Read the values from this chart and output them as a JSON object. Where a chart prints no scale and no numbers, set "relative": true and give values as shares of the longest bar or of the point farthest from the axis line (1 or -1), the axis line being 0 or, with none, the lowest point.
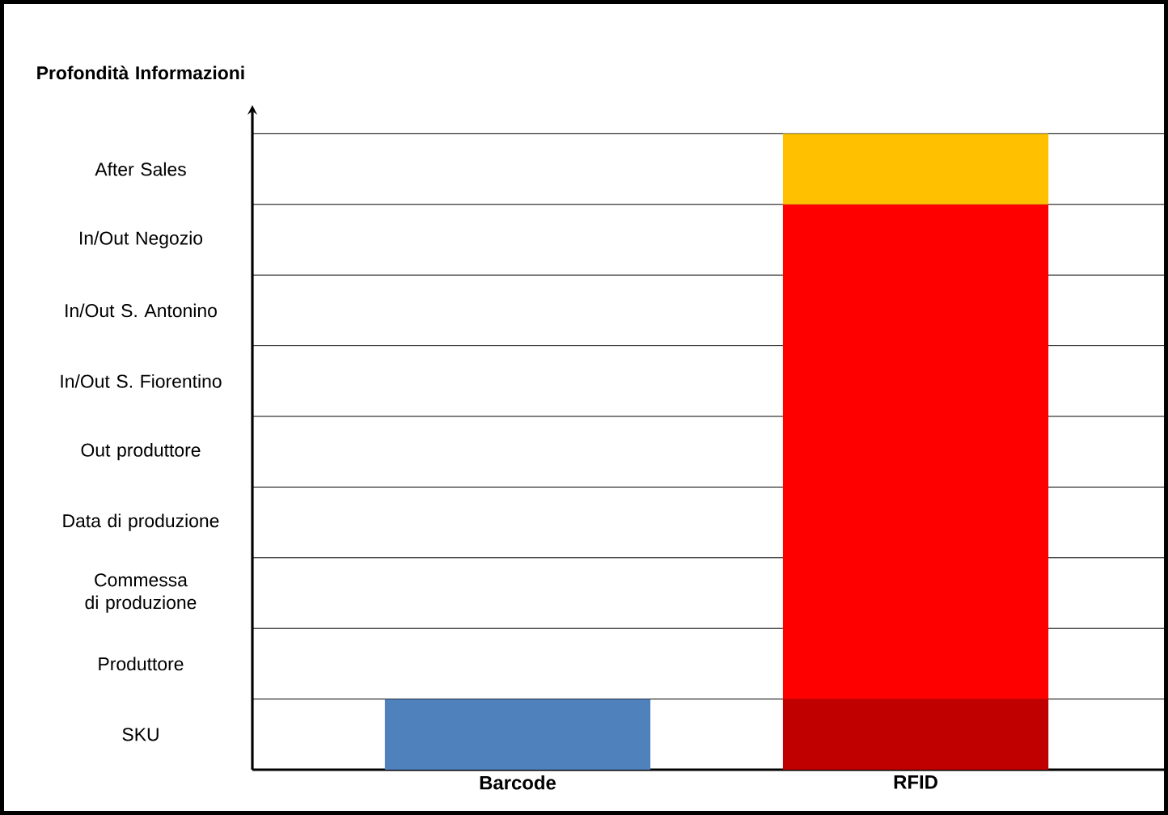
{
  "chart_data": {
    "type": "bar",
    "stacked": true,
    "relative": true,
    "ylabel": "**Profondità Informazioni**",
    "categories": [
      "Barcode",
      "RFID"
    ],
    "series": [
      {
        "colors": [
          "#4f81bd",
          "#c00000"
        ],
        "values": [
          0.111,
          0.111
        ]
      },
      {
        "color": "#ff0000",
        "values": [
          null,
          0.778
        ]
      },
      {
        "color": "#ffc000",
        "values": [
          null,
          0.111
        ]
      }
    ],
    "annotations": [
      "SKU",
      "Produttore",
      "Commessa di produzione",
      "Data di produzione",
      "Out produttore",
      "In/Out S. Fiorentino",
      "In/Out  S. Antonino",
      "In/Out Negozio",
      "After Sales"
    ],
    "grid": "y"
  }
}
